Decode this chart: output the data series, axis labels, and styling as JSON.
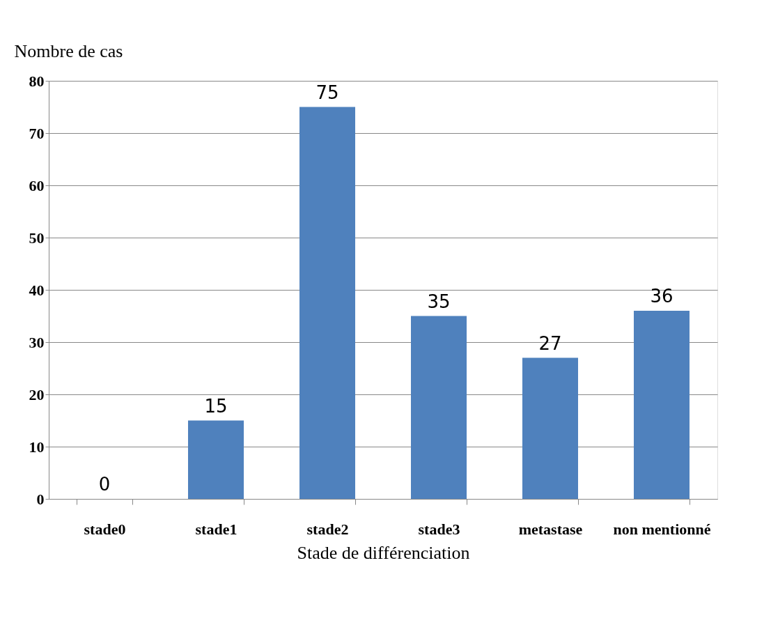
{
  "chart_data": {
    "type": "bar",
    "xlabel": "Stade de différenciation",
    "ylabel": "Nombre de cas",
    "categories": [
      "stade0",
      "stade1",
      "stade2",
      "stade3",
      "metastase",
      "non mentionné"
    ],
    "values": [
      0,
      15,
      75,
      35,
      27,
      36
    ],
    "color": "#4f81bd",
    "ylim": [
      0,
      80
    ],
    "yticks": [
      0,
      10,
      20,
      30,
      40,
      50,
      60,
      70,
      80
    ],
    "grid": "y",
    "data_labels": true
  }
}
